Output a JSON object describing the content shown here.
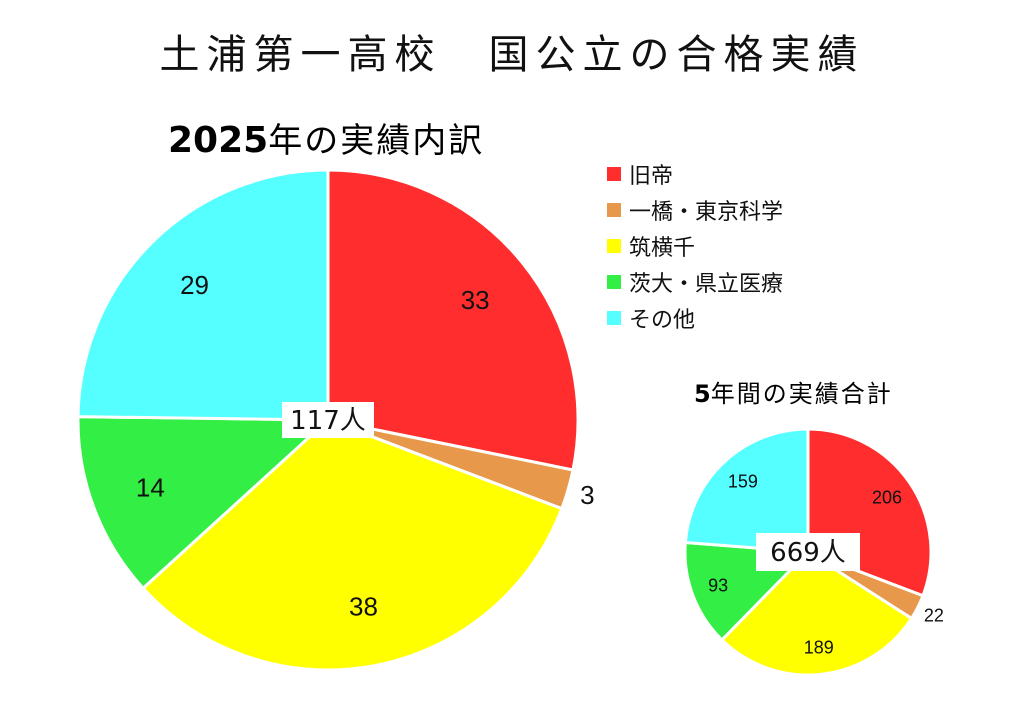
{
  "title": "土浦第一高校　国公立の合格実績",
  "legend": [
    {
      "label": "旧帝",
      "color": "#FF2D2D"
    },
    {
      "label": "一橋・東京科学",
      "color": "#E8984A"
    },
    {
      "label": "筑横千",
      "color": "#FFFF00"
    },
    {
      "label": "茨大・県立医療",
      "color": "#33EE44"
    },
    {
      "label": "その他",
      "color": "#55FFFF"
    }
  ],
  "chart_data": [
    {
      "type": "pie",
      "title_num": "2025",
      "title_rest": "年の実績内訳",
      "categories": [
        "旧帝",
        "一橋・東京科学",
        "筑横千",
        "茨大・県立医療",
        "その他"
      ],
      "values": [
        33,
        3,
        38,
        14,
        29
      ],
      "total_label": "117人",
      "colors": [
        "#FF2D2D",
        "#E8984A",
        "#FFFF00",
        "#33EE44",
        "#55FFFF"
      ]
    },
    {
      "type": "pie",
      "title_num": "5",
      "title_rest": "年間の実績合計",
      "categories": [
        "旧帝",
        "一橋・東京科学",
        "筑横千",
        "茨大・県立医療",
        "その他"
      ],
      "values": [
        206,
        22,
        189,
        93,
        159
      ],
      "total_label": "669人",
      "colors": [
        "#FF2D2D",
        "#E8984A",
        "#FFFF00",
        "#33EE44",
        "#55FFFF"
      ]
    }
  ]
}
